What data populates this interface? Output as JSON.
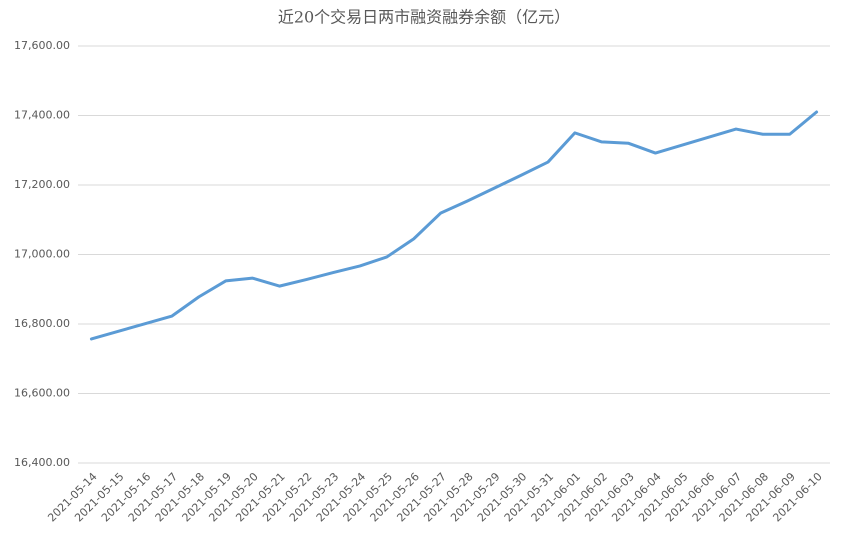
{
  "chart_data": {
    "type": "line",
    "title": "近20个交易日两市融资融券余额（亿元）",
    "categories": [
      "2021-05-14",
      "2021-05-15",
      "2021-05-16",
      "2021-05-17",
      "2021-05-18",
      "2021-05-19",
      "2021-05-20",
      "2021-05-21",
      "2021-05-22",
      "2021-05-23",
      "2021-05-24",
      "2021-05-25",
      "2021-05-26",
      "2021-05-27",
      "2021-05-28",
      "2021-05-29",
      "2021-05-30",
      "2021-05-31",
      "2021-06-01",
      "2021-06-02",
      "2021-06-03",
      "2021-06-04",
      "2021-06-05",
      "2021-06-06",
      "2021-06-07",
      "2021-06-08",
      "2021-06-09",
      "2021-06-10"
    ],
    "series": [
      {
        "color": "#5b9bd5",
        "values": [
          16757,
          16779,
          16801,
          16823,
          16878,
          16924,
          16932,
          16909,
          16928,
          16948,
          16967,
          16993,
          17045,
          17119,
          17154,
          17191,
          17228,
          17266,
          17350,
          17324,
          17320,
          17292,
          17315,
          17338,
          17361,
          17346,
          17346,
          17410
        ]
      }
    ],
    "ylim": [
      16400,
      17600
    ],
    "yticks": [
      {
        "value": 16400,
        "label": "16,400.00"
      },
      {
        "value": 16600,
        "label": "16,600.00"
      },
      {
        "value": 16800,
        "label": "16,800.00"
      },
      {
        "value": 17000,
        "label": "17,000.00"
      },
      {
        "value": 17200,
        "label": "17,200.00"
      },
      {
        "value": 17400,
        "label": "17,400.00"
      },
      {
        "value": 17600,
        "label": "17,600.00"
      }
    ],
    "grid": true
  }
}
